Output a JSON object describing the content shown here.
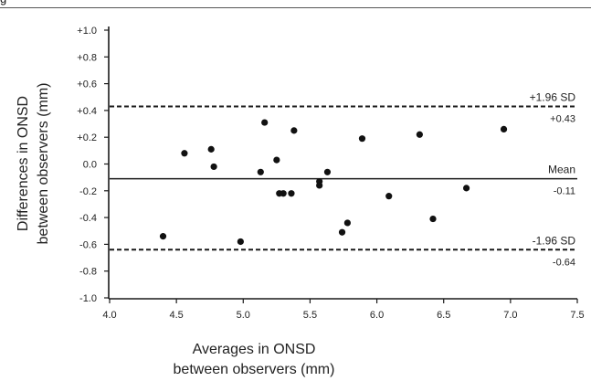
{
  "figure": {
    "corner_label": "g"
  },
  "chart_data": {
    "type": "scatter",
    "title": "",
    "xlabel_lines": [
      "Averages in ONSD",
      "between observers (mm)"
    ],
    "ylabel_lines": [
      "Differences in ONSD",
      "between observers (mm)"
    ],
    "xlim": [
      4.0,
      7.5
    ],
    "ylim": [
      -1.0,
      1.0
    ],
    "x_ticks": [
      "4.0",
      "4.5",
      "5.0",
      "5.5",
      "6.0",
      "6.5",
      "7.0",
      "7.5"
    ],
    "y_ticks": [
      "+1.0",
      "+0.8",
      "+0.6",
      "+0.4",
      "+0.2",
      "0.0",
      "-0.2",
      "-0.4",
      "-0.6",
      "-0.8",
      "-1.0"
    ],
    "grid": false,
    "reference_lines": [
      {
        "label": "+1.96 SD",
        "value_label": "+0.43",
        "y": 0.43,
        "style": "dashed"
      },
      {
        "label": "Mean",
        "value_label": "-0.11",
        "y": -0.11,
        "style": "solid"
      },
      {
        "label": "-1.96 SD",
        "value_label": "-0.64",
        "y": -0.64,
        "style": "dashed"
      }
    ],
    "points": [
      {
        "x": 4.4,
        "y": -0.54
      },
      {
        "x": 4.56,
        "y": 0.08
      },
      {
        "x": 4.76,
        "y": 0.11
      },
      {
        "x": 4.78,
        "y": -0.02
      },
      {
        "x": 4.98,
        "y": -0.58
      },
      {
        "x": 5.13,
        "y": -0.06
      },
      {
        "x": 5.16,
        "y": 0.31
      },
      {
        "x": 5.25,
        "y": 0.03
      },
      {
        "x": 5.27,
        "y": -0.22
      },
      {
        "x": 5.3,
        "y": -0.22
      },
      {
        "x": 5.36,
        "y": -0.22
      },
      {
        "x": 5.38,
        "y": 0.25
      },
      {
        "x": 5.57,
        "y": -0.13
      },
      {
        "x": 5.57,
        "y": -0.16
      },
      {
        "x": 5.63,
        "y": -0.06
      },
      {
        "x": 5.74,
        "y": -0.51
      },
      {
        "x": 5.78,
        "y": -0.44
      },
      {
        "x": 5.89,
        "y": 0.19
      },
      {
        "x": 6.09,
        "y": -0.24
      },
      {
        "x": 6.32,
        "y": 0.22
      },
      {
        "x": 6.42,
        "y": -0.41
      },
      {
        "x": 6.67,
        "y": -0.18
      },
      {
        "x": 6.95,
        "y": 0.26
      }
    ]
  }
}
